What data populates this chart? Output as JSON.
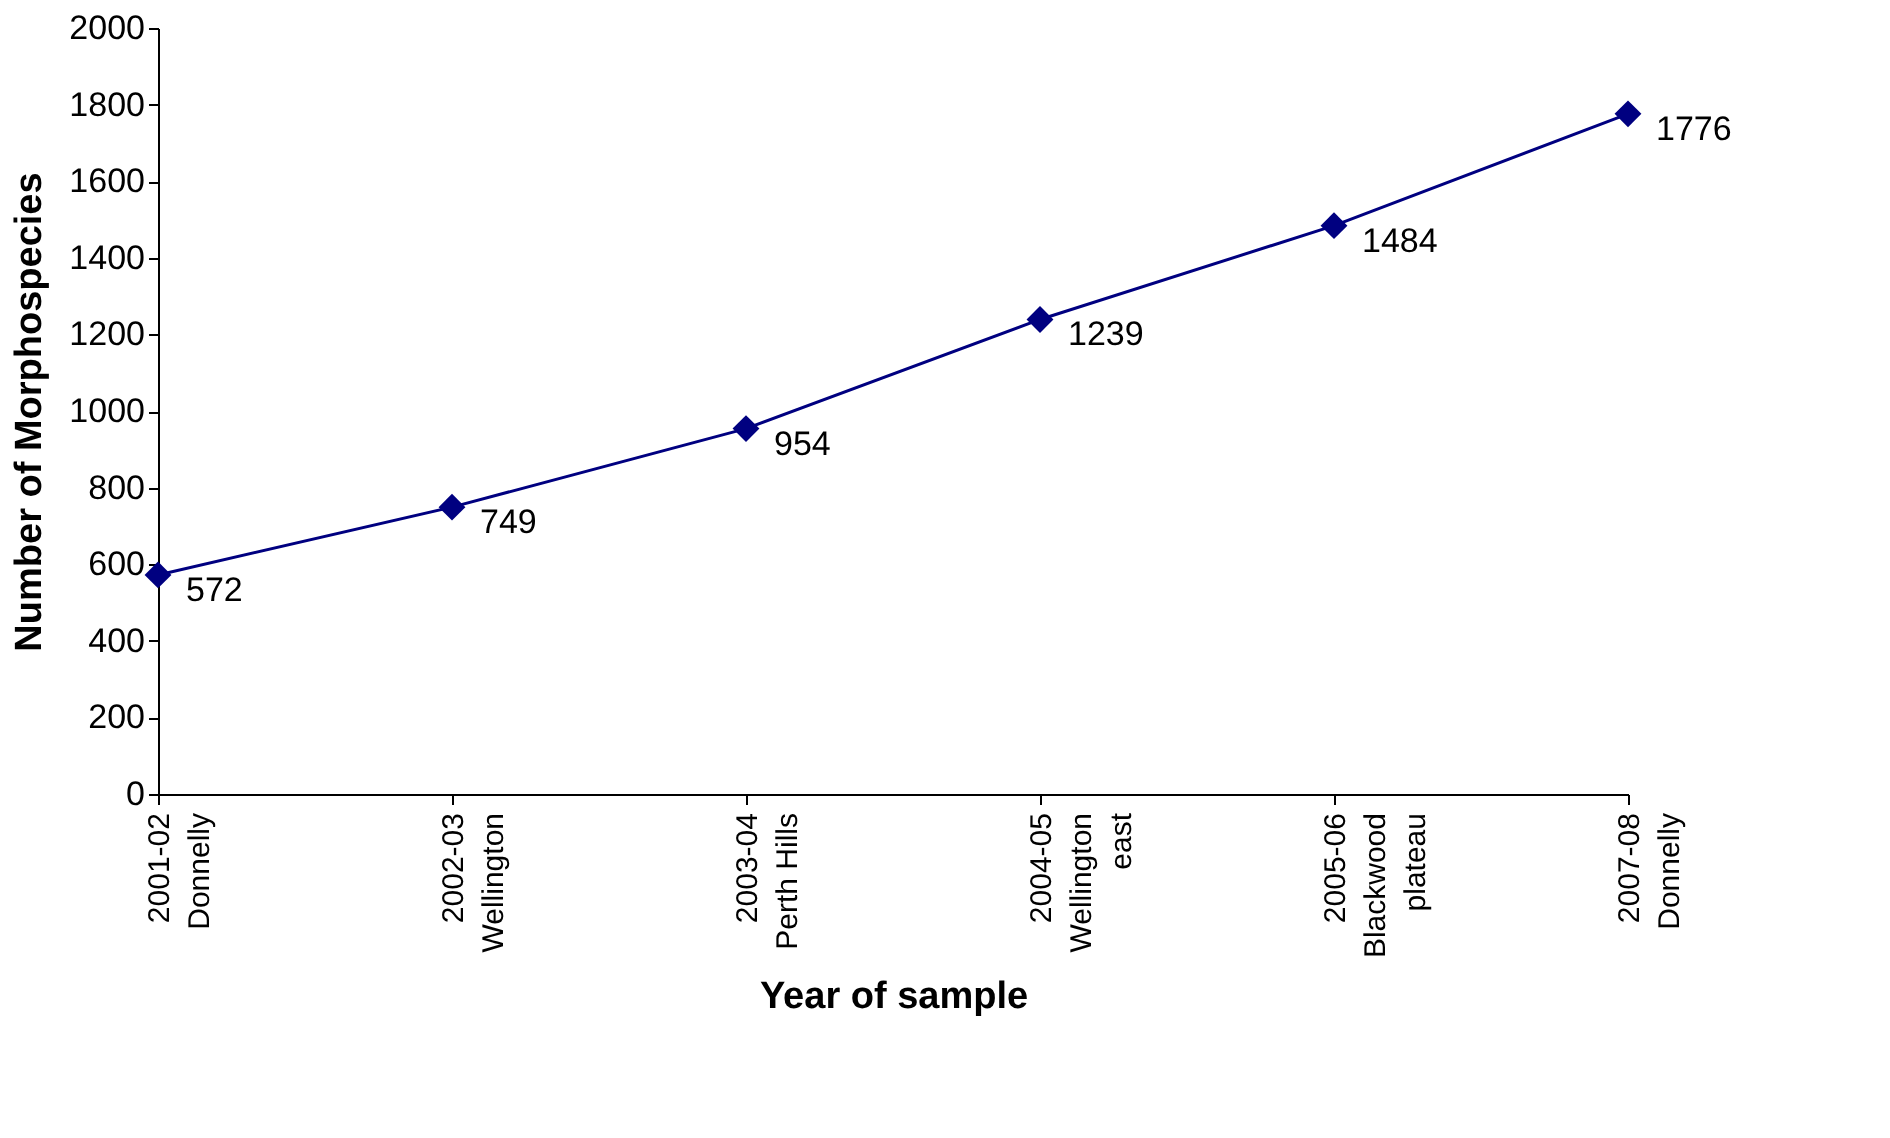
{
  "chart_data": {
    "type": "line",
    "xlabel": "Year of sample",
    "ylabel": "Number of Morphospecies",
    "categories": [
      "2001-02\nDonnelly",
      "2002-03\nWellington",
      "2003-04\nPerth Hills",
      "2004-05\nWellington\neast",
      "2005-06\nBlackwood\nplateau",
      "2007-08\nDonnelly"
    ],
    "values": [
      572,
      749,
      954,
      1239,
      1484,
      1776
    ],
    "color": "#000080",
    "ylim": [
      0,
      2000
    ],
    "yticks": [
      0,
      200,
      400,
      600,
      800,
      1000,
      1200,
      1400,
      1600,
      1800,
      2000
    ],
    "grid": false,
    "marker": "diamond",
    "line_style": "solid",
    "data_labels": true
  }
}
